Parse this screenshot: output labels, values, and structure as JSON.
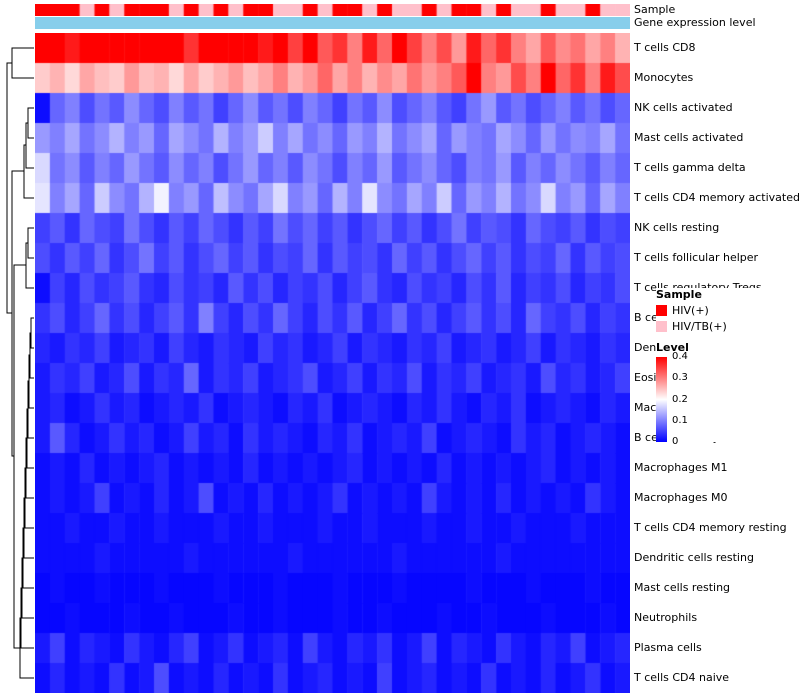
{
  "annotations": {
    "sample": {
      "label": "Sample",
      "classes": {
        "HIV(+)": "#FF0000",
        "HIV/TB(+)": "#FFC0CB"
      },
      "values": [
        "HIV(+)",
        "HIV(+)",
        "HIV(+)",
        "HIV/TB(+)",
        "HIV(+)",
        "HIV/TB(+)",
        "HIV(+)",
        "HIV(+)",
        "HIV(+)",
        "HIV/TB(+)",
        "HIV(+)",
        "HIV/TB(+)",
        "HIV(+)",
        "HIV/TB(+)",
        "HIV(+)",
        "HIV(+)",
        "HIV/TB(+)",
        "HIV/TB(+)",
        "HIV(+)",
        "HIV/TB(+)",
        "HIV(+)",
        "HIV(+)",
        "HIV/TB(+)",
        "HIV(+)",
        "HIV/TB(+)",
        "HIV/TB(+)",
        "HIV(+)",
        "HIV/TB(+)",
        "HIV(+)",
        "HIV(+)",
        "HIV/TB(+)",
        "HIV(+)",
        "HIV/TB(+)",
        "HIV/TB(+)",
        "HIV(+)",
        "HIV/TB(+)",
        "HIV/TB(+)",
        "HIV(+)",
        "HIV/TB(+)",
        "HIV/TB(+)"
      ]
    },
    "gene": {
      "label": "Gene expression level",
      "color": "#87CEEB"
    }
  },
  "chart_data": {
    "type": "heatmap",
    "columns": 40,
    "color_scale": {
      "min": 0,
      "mid": 0.2,
      "max": 0.4,
      "min_color": "#0000FF",
      "mid_color": "#FFFFFF",
      "max_color": "#FF0000"
    },
    "legend_position": "right",
    "row_dendrogram": true,
    "rows": [
      {
        "name": "T cells CD8",
        "values": [
          0.42,
          0.45,
          0.38,
          0.44,
          0.41,
          0.45,
          0.43,
          0.4,
          0.44,
          0.42,
          0.36,
          0.45,
          0.43,
          0.41,
          0.44,
          0.38,
          0.42,
          0.35,
          0.4,
          0.33,
          0.36,
          0.3,
          0.38,
          0.32,
          0.41,
          0.35,
          0.3,
          0.34,
          0.28,
          0.38,
          0.32,
          0.36,
          0.3,
          0.27,
          0.33,
          0.29,
          0.31,
          0.27,
          0.3,
          0.26
        ]
      },
      {
        "name": "Monocytes",
        "values": [
          0.24,
          0.26,
          0.23,
          0.27,
          0.25,
          0.24,
          0.28,
          0.25,
          0.26,
          0.23,
          0.27,
          0.24,
          0.26,
          0.28,
          0.25,
          0.27,
          0.3,
          0.26,
          0.28,
          0.32,
          0.27,
          0.3,
          0.26,
          0.29,
          0.27,
          0.31,
          0.28,
          0.3,
          0.33,
          0.4,
          0.3,
          0.28,
          0.34,
          0.3,
          0.42,
          0.32,
          0.36,
          0.3,
          0.38,
          0.34
        ]
      },
      {
        "name": "NK cells activated",
        "values": [
          0.01,
          0.08,
          0.1,
          0.06,
          0.09,
          0.07,
          0.11,
          0.08,
          0.06,
          0.1,
          0.07,
          0.09,
          0.05,
          0.08,
          0.11,
          0.07,
          0.09,
          0.06,
          0.1,
          0.08,
          0.05,
          0.09,
          0.07,
          0.11,
          0.06,
          0.08,
          0.1,
          0.07,
          0.05,
          0.09,
          0.12,
          0.07,
          0.09,
          0.06,
          0.08,
          0.1,
          0.07,
          0.09,
          0.06,
          0.08
        ]
      },
      {
        "name": "Mast cells activated",
        "values": [
          0.12,
          0.1,
          0.13,
          0.09,
          0.11,
          0.14,
          0.1,
          0.12,
          0.08,
          0.13,
          0.11,
          0.09,
          0.14,
          0.1,
          0.12,
          0.16,
          0.1,
          0.13,
          0.09,
          0.11,
          0.08,
          0.12,
          0.1,
          0.14,
          0.09,
          0.11,
          0.13,
          0.08,
          0.12,
          0.1,
          0.09,
          0.13,
          0.11,
          0.08,
          0.12,
          0.09,
          0.11,
          0.1,
          0.13,
          0.09
        ]
      },
      {
        "name": "T cells gamma delta",
        "values": [
          0.17,
          0.09,
          0.11,
          0.07,
          0.1,
          0.08,
          0.12,
          0.09,
          0.07,
          0.11,
          0.08,
          0.1,
          0.06,
          0.09,
          0.12,
          0.08,
          0.1,
          0.07,
          0.11,
          0.09,
          0.06,
          0.1,
          0.08,
          0.12,
          0.07,
          0.09,
          0.11,
          0.08,
          0.06,
          0.1,
          0.09,
          0.12,
          0.07,
          0.1,
          0.08,
          0.11,
          0.09,
          0.07,
          0.1,
          0.08
        ]
      },
      {
        "name": "T cells CD4 memory activated",
        "values": [
          0.18,
          0.1,
          0.13,
          0.08,
          0.16,
          0.11,
          0.09,
          0.14,
          0.19,
          0.1,
          0.12,
          0.08,
          0.15,
          0.11,
          0.09,
          0.13,
          0.17,
          0.1,
          0.12,
          0.08,
          0.14,
          0.1,
          0.18,
          0.11,
          0.09,
          0.13,
          0.1,
          0.16,
          0.08,
          0.12,
          0.1,
          0.14,
          0.09,
          0.11,
          0.17,
          0.1,
          0.12,
          0.08,
          0.13,
          0.1
        ]
      },
      {
        "name": "NK cells resting",
        "values": [
          0.05,
          0.07,
          0.04,
          0.08,
          0.06,
          0.05,
          0.09,
          0.06,
          0.04,
          0.07,
          0.05,
          0.08,
          0.06,
          0.04,
          0.07,
          0.05,
          0.09,
          0.06,
          0.08,
          0.05,
          0.07,
          0.04,
          0.06,
          0.08,
          0.05,
          0.07,
          0.04,
          0.06,
          0.09,
          0.05,
          0.07,
          0.06,
          0.04,
          0.08,
          0.06,
          0.05,
          0.07,
          0.04,
          0.06,
          0.05
        ]
      },
      {
        "name": "T cells follicular helper",
        "values": [
          0.06,
          0.04,
          0.07,
          0.05,
          0.08,
          0.04,
          0.06,
          0.09,
          0.05,
          0.07,
          0.04,
          0.06,
          0.08,
          0.05,
          0.07,
          0.04,
          0.06,
          0.05,
          0.08,
          0.04,
          0.07,
          0.05,
          0.06,
          0.04,
          0.08,
          0.05,
          0.07,
          0.04,
          0.06,
          0.08,
          0.05,
          0.07,
          0.04,
          0.06,
          0.05,
          0.08,
          0.04,
          0.07,
          0.05,
          0.06
        ]
      },
      {
        "name": "T cells regulatory  Tregs",
        "values": [
          0.01,
          0.05,
          0.03,
          0.06,
          0.04,
          0.05,
          0.07,
          0.04,
          0.03,
          0.06,
          0.04,
          0.05,
          0.03,
          0.07,
          0.04,
          0.06,
          0.03,
          0.05,
          0.04,
          0.06,
          0.03,
          0.05,
          0.07,
          0.04,
          0.03,
          0.06,
          0.04,
          0.05,
          0.03,
          0.06,
          0.04,
          0.07,
          0.03,
          0.05,
          0.04,
          0.06,
          0.03,
          0.05,
          0.04,
          0.06
        ]
      },
      {
        "name": "B cells naive",
        "values": [
          0.04,
          0.06,
          0.03,
          0.05,
          0.08,
          0.04,
          0.06,
          0.03,
          0.05,
          0.07,
          0.04,
          0.1,
          0.05,
          0.03,
          0.06,
          0.04,
          0.08,
          0.05,
          0.03,
          0.06,
          0.04,
          0.07,
          0.03,
          0.05,
          0.08,
          0.04,
          0.06,
          0.03,
          0.05,
          0.07,
          0.04,
          0.06,
          0.03,
          0.08,
          0.05,
          0.04,
          0.06,
          0.03,
          0.05,
          0.04
        ]
      },
      {
        "name": "Dendritic cells activated",
        "values": [
          0.03,
          0.02,
          0.04,
          0.03,
          0.05,
          0.02,
          0.03,
          0.04,
          0.02,
          0.05,
          0.03,
          0.02,
          0.04,
          0.03,
          0.02,
          0.05,
          0.03,
          0.04,
          0.02,
          0.03,
          0.05,
          0.02,
          0.04,
          0.03,
          0.02,
          0.04,
          0.03,
          0.05,
          0.02,
          0.03,
          0.04,
          0.02,
          0.03,
          0.05,
          0.02,
          0.04,
          0.03,
          0.02,
          0.04,
          0.03
        ]
      },
      {
        "name": "Eosinophils",
        "values": [
          0.02,
          0.04,
          0.03,
          0.05,
          0.02,
          0.03,
          0.06,
          0.02,
          0.04,
          0.03,
          0.08,
          0.02,
          0.04,
          0.03,
          0.05,
          0.02,
          0.03,
          0.04,
          0.06,
          0.02,
          0.03,
          0.05,
          0.02,
          0.04,
          0.03,
          0.06,
          0.02,
          0.04,
          0.03,
          0.05,
          0.02,
          0.03,
          0.04,
          0.02,
          0.06,
          0.03,
          0.04,
          0.02,
          0.03,
          0.05
        ]
      },
      {
        "name": "Macrophages M2",
        "values": [
          0.02,
          0.03,
          0.01,
          0.02,
          0.04,
          0.02,
          0.03,
          0.01,
          0.02,
          0.03,
          0.02,
          0.04,
          0.01,
          0.02,
          0.03,
          0.02,
          0.01,
          0.03,
          0.02,
          0.04,
          0.01,
          0.02,
          0.03,
          0.02,
          0.01,
          0.03,
          0.02,
          0.04,
          0.02,
          0.01,
          0.03,
          0.02,
          0.04,
          0.01,
          0.02,
          0.03,
          0.02,
          0.01,
          0.03,
          0.02
        ]
      },
      {
        "name": "B cells memory",
        "values": [
          0.02,
          0.07,
          0.03,
          0.01,
          0.02,
          0.04,
          0.02,
          0.03,
          0.01,
          0.02,
          0.05,
          0.02,
          0.03,
          0.01,
          0.04,
          0.02,
          0.03,
          0.02,
          0.01,
          0.03,
          0.02,
          0.04,
          0.01,
          0.02,
          0.03,
          0.02,
          0.05,
          0.01,
          0.02,
          0.03,
          0.02,
          0.01,
          0.04,
          0.02,
          0.03,
          0.01,
          0.02,
          0.03,
          0.02,
          0.01
        ]
      },
      {
        "name": "Macrophages M1",
        "values": [
          0.01,
          0.02,
          0.01,
          0.03,
          0.01,
          0.02,
          0.01,
          0.02,
          0.03,
          0.01,
          0.02,
          0.01,
          0.02,
          0.01,
          0.03,
          0.01,
          0.02,
          0.01,
          0.02,
          0.01,
          0.02,
          0.03,
          0.01,
          0.02,
          0.01,
          0.02,
          0.01,
          0.03,
          0.01,
          0.02,
          0.01,
          0.02,
          0.01,
          0.02,
          0.03,
          0.01,
          0.02,
          0.01,
          0.02,
          0.01
        ]
      },
      {
        "name": "Macrophages M0",
        "values": [
          0.01,
          0.02,
          0.01,
          0.02,
          0.05,
          0.01,
          0.02,
          0.01,
          0.03,
          0.01,
          0.02,
          0.06,
          0.01,
          0.02,
          0.01,
          0.03,
          0.01,
          0.02,
          0.01,
          0.02,
          0.04,
          0.01,
          0.02,
          0.01,
          0.02,
          0.01,
          0.05,
          0.02,
          0.01,
          0.02,
          0.01,
          0.03,
          0.01,
          0.02,
          0.01,
          0.02,
          0.01,
          0.04,
          0.02,
          0.01
        ]
      },
      {
        "name": "T cells CD4 memory resting",
        "values": [
          0.01,
          0.01,
          0.02,
          0.01,
          0.01,
          0.02,
          0.01,
          0.01,
          0.02,
          0.01,
          0.01,
          0.01,
          0.02,
          0.01,
          0.01,
          0.02,
          0.01,
          0.01,
          0.01,
          0.02,
          0.01,
          0.01,
          0.02,
          0.01,
          0.01,
          0.01,
          0.02,
          0.01,
          0.01,
          0.02,
          0.01,
          0.01,
          0.02,
          0.01,
          0.01,
          0.01,
          0.02,
          0.01,
          0.01,
          0.01
        ]
      },
      {
        "name": "Dendritic cells resting",
        "values": [
          0.01,
          0.01,
          0.01,
          0.01,
          0.02,
          0.01,
          0.01,
          0.01,
          0.01,
          0.01,
          0.02,
          0.01,
          0.01,
          0.01,
          0.01,
          0.01,
          0.01,
          0.02,
          0.01,
          0.01,
          0.01,
          0.01,
          0.01,
          0.01,
          0.02,
          0.01,
          0.01,
          0.01,
          0.01,
          0.01,
          0.01,
          0.02,
          0.01,
          0.01,
          0.01,
          0.01,
          0.01,
          0.01,
          0.01,
          0.01
        ]
      },
      {
        "name": "Mast cells resting",
        "values": [
          0.005,
          0.01,
          0.005,
          0.005,
          0.01,
          0.005,
          0.005,
          0.005,
          0.01,
          0.005,
          0.005,
          0.005,
          0.01,
          0.005,
          0.005,
          0.005,
          0.01,
          0.005,
          0.005,
          0.005,
          0.01,
          0.005,
          0.005,
          0.005,
          0.01,
          0.005,
          0.005,
          0.005,
          0.005,
          0.01,
          0.005,
          0.005,
          0.005,
          0.01,
          0.005,
          0.005,
          0.005,
          0.01,
          0.005,
          0.005
        ]
      },
      {
        "name": "Neutrophils",
        "values": [
          0.005,
          0.005,
          0.01,
          0.005,
          0.005,
          0.005,
          0.01,
          0.005,
          0.005,
          0.01,
          0.005,
          0.005,
          0.005,
          0.01,
          0.005,
          0.005,
          0.01,
          0.005,
          0.005,
          0.005,
          0.01,
          0.005,
          0.005,
          0.01,
          0.005,
          0.005,
          0.005,
          0.01,
          0.005,
          0.005,
          0.01,
          0.005,
          0.005,
          0.005,
          0.01,
          0.005,
          0.005,
          0.005,
          0.01,
          0.005
        ]
      },
      {
        "name": "Plasma cells",
        "values": [
          0.02,
          0.05,
          0.01,
          0.03,
          0.02,
          0.01,
          0.04,
          0.02,
          0.01,
          0.03,
          0.05,
          0.01,
          0.02,
          0.04,
          0.01,
          0.02,
          0.03,
          0.01,
          0.05,
          0.02,
          0.01,
          0.03,
          0.02,
          0.04,
          0.01,
          0.02,
          0.05,
          0.01,
          0.03,
          0.02,
          0.01,
          0.04,
          0.02,
          0.01,
          0.03,
          0.02,
          0.05,
          0.01,
          0.02,
          0.03
        ]
      },
      {
        "name": "T cells CD4 naive",
        "values": [
          0.01,
          0.03,
          0.01,
          0.02,
          0.01,
          0.04,
          0.01,
          0.02,
          0.06,
          0.01,
          0.02,
          0.01,
          0.03,
          0.01,
          0.02,
          0.01,
          0.04,
          0.01,
          0.02,
          0.03,
          0.01,
          0.02,
          0.01,
          0.05,
          0.01,
          0.02,
          0.03,
          0.01,
          0.02,
          0.01,
          0.04,
          0.01,
          0.02,
          0.01,
          0.03,
          0.01,
          0.02,
          0.04,
          0.01,
          0.02
        ]
      }
    ]
  },
  "legend": {
    "sample": {
      "title": "Sample",
      "items": [
        {
          "label": "HIV(+)",
          "color": "#FF0000"
        },
        {
          "label": "HIV/TB(+)",
          "color": "#FFC0CB"
        }
      ]
    },
    "level": {
      "title": "Level",
      "ticks": [
        "0.4",
        "0.3",
        "0.2",
        "0.1",
        "0"
      ]
    }
  }
}
